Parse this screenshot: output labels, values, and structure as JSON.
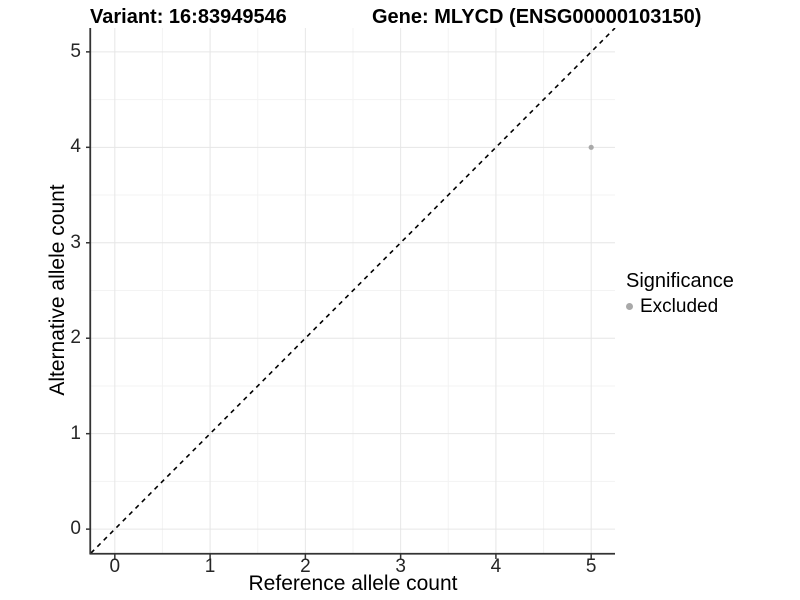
{
  "figure": {
    "background": "#ffffff"
  },
  "chart_data": {
    "type": "scatter",
    "title_left": "Variant: 16:83949546",
    "title_right": "Gene: MLYCD (ENSG00000103150)",
    "xlabel": "Reference allele count",
    "ylabel": "Alternative allele count",
    "xlim": [
      -0.25,
      5.25
    ],
    "ylim": [
      -0.25,
      5.25
    ],
    "xticks": [
      0,
      1,
      2,
      3,
      4,
      5
    ],
    "yticks": [
      0,
      1,
      2,
      3,
      4,
      5
    ],
    "minor_ticks_x": [
      0.5,
      1.5,
      2.5,
      3.5,
      4.5
    ],
    "minor_ticks_y": [
      0.5,
      1.5,
      2.5,
      3.5,
      4.5
    ],
    "grid": true,
    "series": [
      {
        "name": "Excluded",
        "color": "#a9a9a9",
        "points": [
          {
            "x": 5,
            "y": 4
          }
        ]
      }
    ],
    "reference_line": {
      "type": "identity",
      "style": "dashed",
      "color": "#000000",
      "x1": -0.25,
      "y1": -0.25,
      "x2": 5.25,
      "y2": 5.25
    },
    "legend": {
      "title": "Significance",
      "position": "right",
      "entries": [
        {
          "label": "Excluded",
          "color": "#a9a9a9"
        }
      ]
    },
    "colors": {
      "point": "#a9a9a9",
      "grid_major": "#e6e6e6",
      "grid_minor": "#f3f3f3",
      "axis_line": "#333333",
      "tick_mark": "#333333",
      "tick_text": "#262626",
      "title_text": "#000000"
    }
  }
}
